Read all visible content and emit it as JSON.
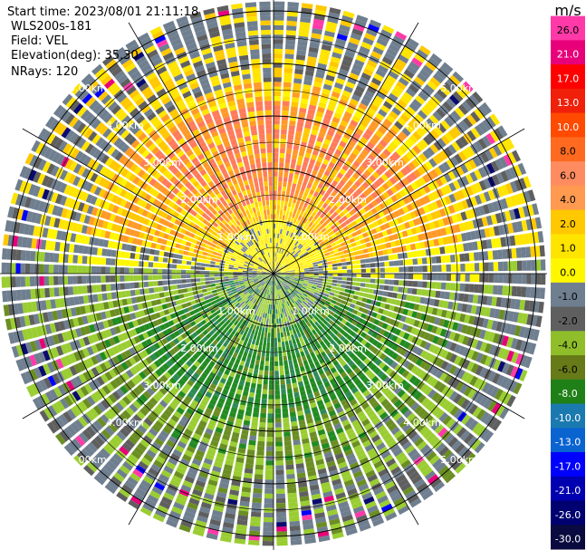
{
  "header": {
    "start_time": "Start time: 2023/08/01 21:11:18",
    "instrument": "WLS200s-181",
    "field": "Field: VEL",
    "elevation": "Elevation(deg): 35.30",
    "nrays": "NRays: 120"
  },
  "range_labels": [
    "1.00km",
    "2.00km",
    "3.00km",
    "4.00km",
    "5.00km"
  ],
  "colorbar": {
    "unit": "m/s",
    "ticks": [
      "26.0",
      "21.0",
      "17.0",
      "13.0",
      "10.0",
      "8.0",
      "6.0",
      "4.0",
      "2.0",
      "1.0",
      "0.0",
      "-1.0",
      "-2.0",
      "-4.0",
      "-6.0",
      "-8.0",
      "-10.0",
      "-13.0",
      "-17.0",
      "-21.0",
      "-26.0",
      "-30.0"
    ],
    "colors": [
      "#ff3aa8",
      "#e8007a",
      "#ff0000",
      "#f0200a",
      "#ff4a00",
      "#ff6a20",
      "#ff8c60",
      "#ff9a50",
      "#ffc800",
      "#ffe400",
      "#fff700",
      "#6f7f8f",
      "#5f5f5f",
      "#8fbe2a",
      "#667a18",
      "#208018",
      "#1a7ab0",
      "#0a64d0",
      "#0000ff",
      "#0000b0",
      "#000070",
      "#0a0a40"
    ]
  },
  "chart_data": {
    "type": "heatmap",
    "projection": "PPI",
    "field": "VEL",
    "units": "m/s",
    "nrays": 120,
    "max_range_km": 5.5,
    "range_rings_km": [
      1,
      2,
      3,
      4,
      5
    ],
    "azimuth_lines_deg": [
      0,
      30,
      60,
      90,
      120,
      150,
      180,
      210,
      240,
      270,
      300,
      330
    ],
    "pattern": {
      "north_half_dominant_m_s": [
        2.0,
        8.0
      ],
      "south_half_dominant_m_s": [
        -1.0,
        -6.0
      ],
      "near_zero_band": "east-west",
      "noise_far_range_m_s": 0.0
    }
  }
}
